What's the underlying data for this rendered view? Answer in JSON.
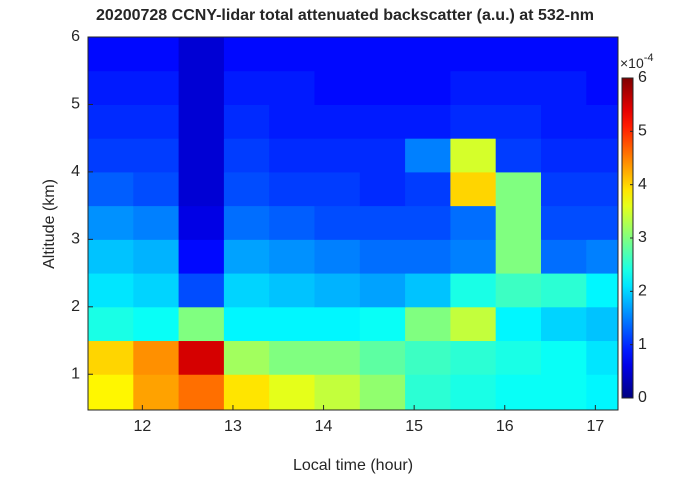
{
  "chart_data": {
    "type": "heatmap",
    "title": "20200728 CCNY-lidar total attenuated backscatter (a.u.) at 532-nm",
    "x_label": "Local time (hour)",
    "y_label": "Altitude (km)",
    "xlim": [
      11.4,
      17.25
    ],
    "xticks": [
      12,
      13,
      14,
      15,
      16,
      17
    ],
    "ylim": [
      0.47,
      6
    ],
    "yticks": [
      1,
      2,
      3,
      4,
      5,
      6
    ],
    "x_edges": [
      11.4,
      11.9,
      12.4,
      12.9,
      13.4,
      13.9,
      14.4,
      14.9,
      15.4,
      15.9,
      16.4,
      16.9,
      17.25
    ],
    "y_edges": [
      0.47,
      1,
      1.5,
      2,
      2.5,
      3,
      3.5,
      4,
      4.5,
      5,
      5.5,
      6
    ],
    "z": [
      [
        3.8,
        4.3,
        4.6,
        3.9,
        3.6,
        3.4,
        3.1,
        2.5,
        2.4,
        2.3,
        2.3,
        2.2
      ],
      [
        4.0,
        4.4,
        5.5,
        3.2,
        3.0,
        3.0,
        2.8,
        2.6,
        2.5,
        2.4,
        2.3,
        2.1
      ],
      [
        2.4,
        2.3,
        3.0,
        2.2,
        2.2,
        2.2,
        2.3,
        3.0,
        3.4,
        2.2,
        2.0,
        1.9
      ],
      [
        2.1,
        2.0,
        1.2,
        2.0,
        1.9,
        1.8,
        1.7,
        1.9,
        2.4,
        2.6,
        2.5,
        2.2
      ],
      [
        1.9,
        1.8,
        0.8,
        1.7,
        1.6,
        1.5,
        1.4,
        1.4,
        1.5,
        3.0,
        1.4,
        1.5
      ],
      [
        1.6,
        1.5,
        0.6,
        1.4,
        1.3,
        1.2,
        1.2,
        1.2,
        1.4,
        3.0,
        1.2,
        1.2
      ],
      [
        1.3,
        1.2,
        0.5,
        1.2,
        1.1,
        1.1,
        1.0,
        1.1,
        4.0,
        3.0,
        1.1,
        1.1
      ],
      [
        1.1,
        1.1,
        0.5,
        1.1,
        1.0,
        1.0,
        1.0,
        1.5,
        3.5,
        1.1,
        1.0,
        1.0
      ],
      [
        1.0,
        1.0,
        0.5,
        1.0,
        0.9,
        0.9,
        0.9,
        0.9,
        1.0,
        1.0,
        0.9,
        0.9
      ],
      [
        0.9,
        0.9,
        0.5,
        0.9,
        0.9,
        0.8,
        0.8,
        0.8,
        0.9,
        0.9,
        0.9,
        0.8
      ],
      [
        0.8,
        0.8,
        0.5,
        0.8,
        0.8,
        0.8,
        0.8,
        0.8,
        0.8,
        0.8,
        0.8,
        0.8
      ]
    ],
    "colormap": "jet",
    "clim": [
      0,
      6
    ],
    "cticks": [
      0,
      1,
      2,
      3,
      4,
      5,
      6
    ],
    "colorbar_multiplier": {
      "base": "×10",
      "exponent": "-4"
    }
  }
}
